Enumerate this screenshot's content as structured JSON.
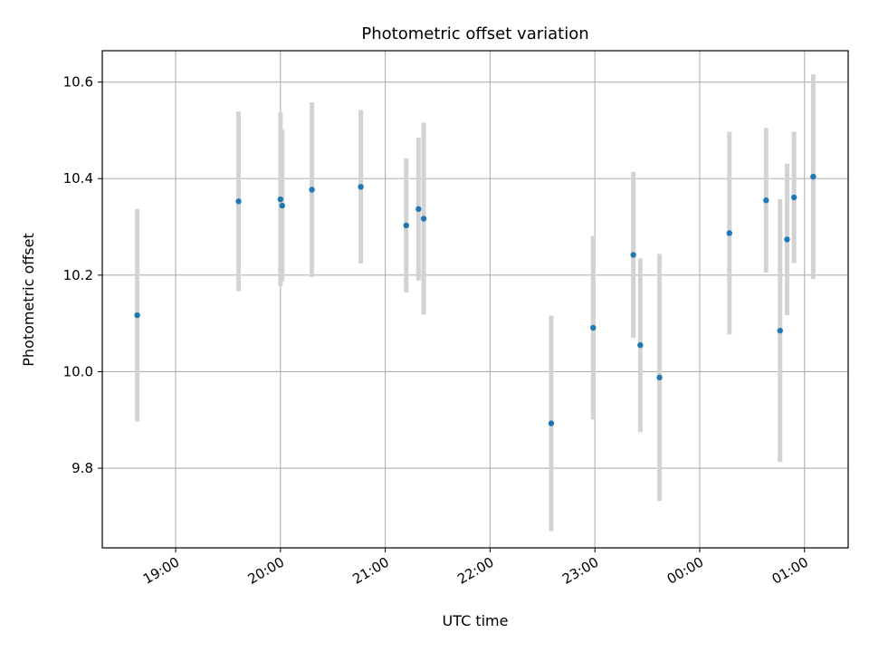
{
  "chart_data": {
    "type": "scatter",
    "title": "Photometric offset variation",
    "xlabel": "UTC time",
    "ylabel": "Photometric offset",
    "x_axis": {
      "kind": "time",
      "range": [
        "2000-01-01T18:18",
        "2000-01-02T01:25"
      ],
      "ticks": [
        {
          "value": "2000-01-01T19:00",
          "label": "19:00"
        },
        {
          "value": "2000-01-01T20:00",
          "label": "20:00"
        },
        {
          "value": "2000-01-01T21:00",
          "label": "21:00"
        },
        {
          "value": "2000-01-01T22:00",
          "label": "22:00"
        },
        {
          "value": "2000-01-01T23:00",
          "label": "23:00"
        },
        {
          "value": "2000-01-02T00:00",
          "label": "00:00"
        },
        {
          "value": "2000-01-02T01:00",
          "label": "01:00"
        }
      ]
    },
    "y_axis": {
      "range": [
        9.635,
        10.665
      ],
      "ticks": [
        {
          "value": 9.8,
          "label": "9.8"
        },
        {
          "value": 10.0,
          "label": "10.0"
        },
        {
          "value": 10.2,
          "label": "10.2"
        },
        {
          "value": 10.4,
          "label": "10.4"
        },
        {
          "value": 10.6,
          "label": "10.6"
        }
      ]
    },
    "grid": true,
    "marker_color": "#1f77b4",
    "errorbar_color": "#d3d3d3",
    "points": [
      {
        "x": "2000-01-01T18:38",
        "y": 10.117,
        "err": 0.22
      },
      {
        "x": "2000-01-01T19:36",
        "y": 10.353,
        "err": 0.186
      },
      {
        "x": "2000-01-01T20:00",
        "y": 10.357,
        "err": 0.18
      },
      {
        "x": "2000-01-01T20:01",
        "y": 10.344,
        "err": 0.157
      },
      {
        "x": "2000-01-01T20:18",
        "y": 10.377,
        "err": 0.181
      },
      {
        "x": "2000-01-01T20:46",
        "y": 10.383,
        "err": 0.159
      },
      {
        "x": "2000-01-01T21:12",
        "y": 10.303,
        "err": 0.139
      },
      {
        "x": "2000-01-01T21:19",
        "y": 10.337,
        "err": 0.148
      },
      {
        "x": "2000-01-01T21:22",
        "y": 10.317,
        "err": 0.199
      },
      {
        "x": "2000-01-01T22:35",
        "y": 9.893,
        "err": 0.223
      },
      {
        "x": "2000-01-01T22:59",
        "y": 10.091,
        "err": 0.19
      },
      {
        "x": "2000-01-01T23:22",
        "y": 10.242,
        "err": 0.172
      },
      {
        "x": "2000-01-01T23:26",
        "y": 10.055,
        "err": 0.18
      },
      {
        "x": "2000-01-01T23:37",
        "y": 9.988,
        "err": 0.256
      },
      {
        "x": "2000-01-02T00:17",
        "y": 10.287,
        "err": 0.21
      },
      {
        "x": "2000-01-02T00:38",
        "y": 10.355,
        "err": 0.15
      },
      {
        "x": "2000-01-02T00:46",
        "y": 10.085,
        "err": 0.272
      },
      {
        "x": "2000-01-02T00:50",
        "y": 10.274,
        "err": 0.157
      },
      {
        "x": "2000-01-02T00:54",
        "y": 10.361,
        "err": 0.136
      },
      {
        "x": "2000-01-02T01:05",
        "y": 10.404,
        "err": 0.212
      }
    ]
  }
}
